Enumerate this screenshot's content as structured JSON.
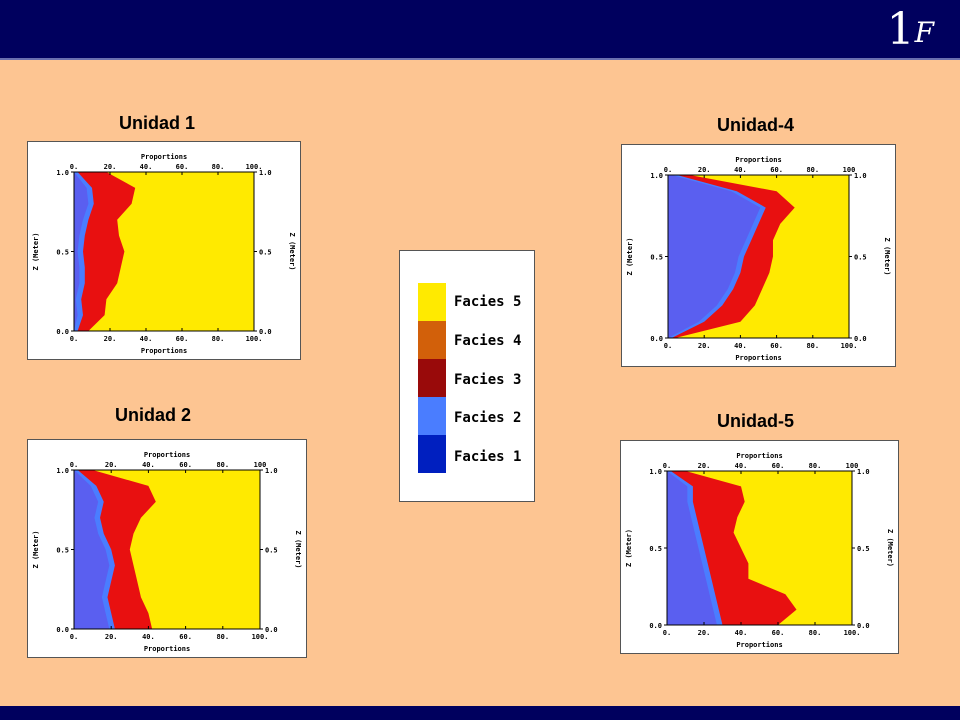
{
  "header": {
    "logo_one": "1",
    "logo_f": "F"
  },
  "colors": {
    "facies1": "#001fbf",
    "facies2": "#4a7dff",
    "facies3": "#990a0a",
    "facies4": "#d2600a",
    "facies5": "#ffea00"
  },
  "legend": {
    "items": [
      {
        "label": "Facies 5",
        "color": "#ffea00"
      },
      {
        "label": "Facies 4",
        "color": "#d2600a"
      },
      {
        "label": "Facies 3",
        "color": "#990a0a"
      },
      {
        "label": "Facies 2",
        "color": "#4a7dff"
      },
      {
        "label": "Facies 1",
        "color": "#001fbf"
      }
    ]
  },
  "chart_data": [
    {
      "type": "area",
      "title": "Unidad 1",
      "xlabel_top": "Proportions",
      "xlabel_bottom": "Proportions",
      "ylabel_left": "Z (Meter)",
      "ylabel_right": "Z (Meter)",
      "xticks": [
        "0.",
        "20.",
        "40.",
        "60.",
        "80.",
        "100."
      ],
      "xticks_bottom": [
        "0.",
        "20.",
        "40.",
        "60.",
        "80.",
        "100."
      ],
      "yticks": [
        "0.0",
        "0.5",
        "1.0"
      ],
      "xlim": [
        0,
        100
      ],
      "ylim": [
        0,
        1
      ],
      "z": [
        0.0,
        0.1,
        0.2,
        0.3,
        0.4,
        0.5,
        0.6,
        0.7,
        0.8,
        0.9,
        1.0
      ],
      "series": [
        {
          "name": "Facies 2",
          "color": "#4a7dff",
          "cumulative": [
            2,
            5,
            4,
            6,
            6,
            5,
            6,
            8,
            11,
            10,
            2
          ]
        },
        {
          "name": "Facies 3",
          "color": "#e81010",
          "cumulative": [
            8,
            17,
            18,
            24,
            26,
            28,
            25,
            24,
            32,
            34,
            18
          ]
        }
      ]
    },
    {
      "type": "area",
      "title": "Unidad 2",
      "xlabel_top": "Proportions",
      "xlabel_bottom": "Proportions",
      "ylabel_left": "Z (Meter)",
      "ylabel_right": "Z (Meter)",
      "xticks": [
        "0.",
        "20.",
        "40.",
        "60.",
        "80.",
        "100"
      ],
      "xticks_bottom": [
        "0.",
        "20.",
        "40.",
        "60.",
        "80.",
        "100."
      ],
      "yticks": [
        "0.0",
        "0.5",
        "1.0"
      ],
      "xlim": [
        0,
        100
      ],
      "ylim": [
        0,
        1
      ],
      "z": [
        0.0,
        0.1,
        0.2,
        0.3,
        0.4,
        0.5,
        0.6,
        0.7,
        0.8,
        0.9,
        1.0
      ],
      "series": [
        {
          "name": "Facies 2",
          "color": "#4a7dff",
          "cumulative": [
            22,
            20,
            18,
            20,
            22,
            20,
            16,
            14,
            16,
            12,
            2
          ]
        },
        {
          "name": "Facies 3",
          "color": "#e81010",
          "cumulative": [
            42,
            40,
            36,
            34,
            32,
            30,
            32,
            36,
            44,
            40,
            10
          ]
        }
      ]
    },
    {
      "type": "area",
      "title": "Unidad-4",
      "xlabel_top": "Proportions",
      "xlabel_bottom": "Proportions",
      "ylabel_left": "Z (Meter)",
      "ylabel_right": "Z (Meter)",
      "xticks": [
        "0.",
        "20.",
        "40.",
        "60.",
        "80.",
        "100"
      ],
      "xticks_bottom": [
        "0.",
        "20.",
        "40.",
        "60.",
        "80.",
        "100."
      ],
      "yticks": [
        "0.0",
        "0.5",
        "1.0"
      ],
      "xlim": [
        0,
        100
      ],
      "ylim": [
        0,
        1
      ],
      "z": [
        0.0,
        0.1,
        0.2,
        0.3,
        0.4,
        0.5,
        0.6,
        0.7,
        0.8,
        0.9,
        1.0
      ],
      "series": [
        {
          "name": "Facies 2",
          "color": "#4a7dff",
          "cumulative": [
            2,
            20,
            30,
            36,
            40,
            42,
            46,
            50,
            54,
            38,
            5
          ]
        },
        {
          "name": "Facies 3",
          "color": "#e81010",
          "cumulative": [
            4,
            40,
            48,
            52,
            56,
            58,
            58,
            62,
            70,
            60,
            12
          ]
        }
      ]
    },
    {
      "type": "area",
      "title": "Unidad-5",
      "xlabel_top": "Proportions",
      "xlabel_bottom": "Proportions",
      "ylabel_left": "Z (Meter)",
      "ylabel_right": "Z (Meter)",
      "xticks": [
        "0.",
        "20.",
        "40.",
        "60.",
        "80.",
        "100"
      ],
      "xticks_bottom": [
        "0.",
        "20.",
        "40.",
        "60.",
        "80.",
        "100."
      ],
      "yticks": [
        "0.0",
        "0.5",
        "1.0"
      ],
      "xlim": [
        0,
        100
      ],
      "ylim": [
        0,
        1
      ],
      "z": [
        0.0,
        0.1,
        0.2,
        0.3,
        0.4,
        0.5,
        0.6,
        0.7,
        0.8,
        0.9,
        1.0
      ],
      "series": [
        {
          "name": "Facies 2",
          "color": "#4a7dff",
          "cumulative": [
            30,
            28,
            26,
            24,
            22,
            20,
            18,
            16,
            14,
            14,
            2
          ]
        },
        {
          "name": "Facies 3",
          "color": "#e81010",
          "cumulative": [
            60,
            70,
            64,
            44,
            44,
            40,
            36,
            38,
            42,
            40,
            10
          ]
        }
      ]
    }
  ]
}
